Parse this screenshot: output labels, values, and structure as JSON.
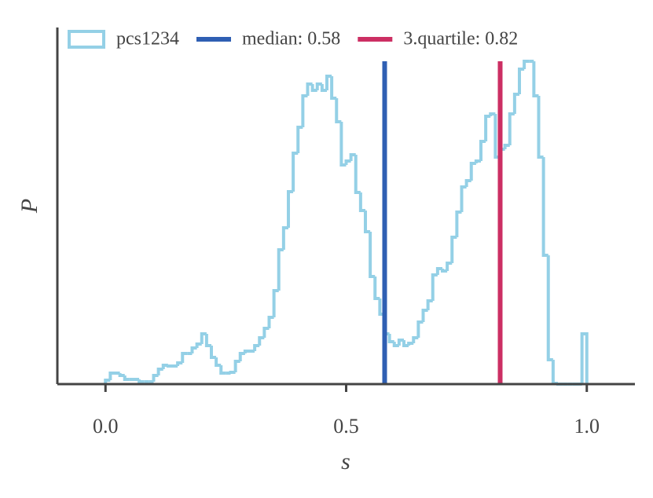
{
  "chart_data": {
    "type": "histogram",
    "xlabel": "s",
    "ylabel": "P",
    "bins": [
      0,
      0.01,
      0.02,
      0.03,
      0.04,
      0.05,
      0.06,
      0.07,
      0.08,
      0.09,
      0.1,
      0.11,
      0.12,
      0.13,
      0.14,
      0.15,
      0.16,
      0.17,
      0.18,
      0.19,
      0.2,
      0.21,
      0.22,
      0.23,
      0.24,
      0.25,
      0.26,
      0.27,
      0.28,
      0.29,
      0.3,
      0.31,
      0.32,
      0.33,
      0.34,
      0.35,
      0.36,
      0.37,
      0.38,
      0.39,
      0.4,
      0.41,
      0.42,
      0.43,
      0.44,
      0.45,
      0.46,
      0.47,
      0.48,
      0.49,
      0.5,
      0.51,
      0.52,
      0.53,
      0.54,
      0.55,
      0.56,
      0.57,
      0.58,
      0.59,
      0.6,
      0.61,
      0.62,
      0.63,
      0.64,
      0.65,
      0.66,
      0.67,
      0.68,
      0.69,
      0.7,
      0.71,
      0.72,
      0.73,
      0.74,
      0.75,
      0.76,
      0.77,
      0.78,
      0.79,
      0.8,
      0.81,
      0.82,
      0.83,
      0.84,
      0.85,
      0.86,
      0.87,
      0.88,
      0.89,
      0.9,
      0.91,
      0.92,
      0.93,
      0.94,
      0.95,
      0.96,
      0.97,
      0.98,
      0.99,
      1.0
    ],
    "series": [
      {
        "name": "pcs1234",
        "color": "#94d0e6",
        "values": [
          0.05,
          0.14,
          0.14,
          0.11,
          0.06,
          0.06,
          0.06,
          0.03,
          0.03,
          0.03,
          0.11,
          0.19,
          0.24,
          0.23,
          0.23,
          0.27,
          0.39,
          0.39,
          0.46,
          0.51,
          0.64,
          0.49,
          0.34,
          0.24,
          0.14,
          0.14,
          0.15,
          0.29,
          0.39,
          0.42,
          0.42,
          0.49,
          0.59,
          0.71,
          0.85,
          1.19,
          1.71,
          1.99,
          2.45,
          2.94,
          3.27,
          3.67,
          3.82,
          3.74,
          3.82,
          3.74,
          3.92,
          3.64,
          3.34,
          2.79,
          2.84,
          2.92,
          2.44,
          2.21,
          1.94,
          1.37,
          1.09,
          0.89,
          0.64,
          0.54,
          0.49,
          0.56,
          0.49,
          0.52,
          0.59,
          0.79,
          0.94,
          1.06,
          1.39,
          1.47,
          1.44,
          1.54,
          1.87,
          2.19,
          2.51,
          2.59,
          2.81,
          2.84,
          3.09,
          3.41,
          3.44,
          2.89,
          2.99,
          3.04,
          3.44,
          3.69,
          4.01,
          4.11,
          4.11,
          3.67,
          2.89,
          1.64,
          0.31,
          0.01,
          0,
          0,
          0,
          0,
          0,
          0.64
        ]
      }
    ],
    "vlines": [
      {
        "name": "median: 0.58",
        "x": 0.58,
        "color": "#2f5fb3"
      },
      {
        "name": "3.quartile: 0.82",
        "x": 0.82,
        "color": "#cc2f63"
      }
    ],
    "xlim": [
      -0.1,
      1.1
    ],
    "ylim": [
      0,
      4.54
    ],
    "xticks": [
      {
        "value": 0,
        "label": "0.0"
      },
      0.5,
      {
        "value": 1,
        "label": "1.0"
      }
    ]
  }
}
